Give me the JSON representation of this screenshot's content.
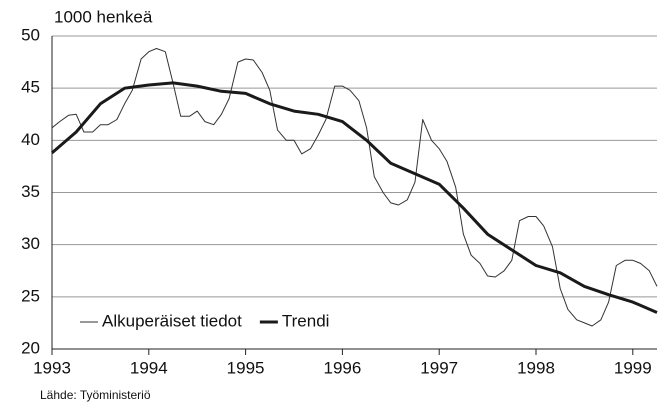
{
  "chart_data": {
    "type": "line",
    "ylabel": "1000 henkeä",
    "source": "Lähde: Työministeriö",
    "xlim": [
      1993,
      1999.25
    ],
    "xticks": [
      1993,
      1994,
      1995,
      1996,
      1997,
      1998,
      1999
    ],
    "ylim": [
      20,
      50
    ],
    "yticks": [
      20,
      25,
      30,
      35,
      40,
      45,
      50
    ],
    "grid": true,
    "legend": "lower left",
    "series": [
      {
        "name": "Alkuperäiset tiedot",
        "color": "#333333",
        "width": 1,
        "x": [
          1993,
          1993.08,
          1993.17,
          1993.25,
          1993.33,
          1993.42,
          1993.5,
          1993.58,
          1993.67,
          1993.75,
          1993.83,
          1993.92,
          1994,
          1994.08,
          1994.17,
          1994.25,
          1994.33,
          1994.42,
          1994.5,
          1994.58,
          1994.67,
          1994.75,
          1994.83,
          1994.92,
          1995,
          1995.08,
          1995.17,
          1995.25,
          1995.33,
          1995.42,
          1995.5,
          1995.58,
          1995.67,
          1995.75,
          1995.83,
          1995.92,
          1996,
          1996.08,
          1996.17,
          1996.25,
          1996.33,
          1996.42,
          1996.5,
          1996.58,
          1996.67,
          1996.75,
          1996.83,
          1996.92,
          1997,
          1997.08,
          1997.17,
          1997.25,
          1997.33,
          1997.42,
          1997.5,
          1997.58,
          1997.67,
          1997.75,
          1997.83,
          1997.92,
          1998,
          1998.08,
          1998.17,
          1998.25,
          1998.33,
          1998.42,
          1998.5,
          1998.58,
          1998.67,
          1998.75,
          1998.83,
          1998.92,
          1999,
          1999.08,
          1999.17,
          1999.25
        ],
        "values": [
          41.2,
          41.8,
          42.4,
          42.5,
          40.8,
          40.8,
          41.5,
          41.5,
          42.0,
          43.5,
          44.8,
          47.8,
          48.5,
          48.8,
          48.5,
          45.5,
          42.3,
          42.3,
          42.8,
          41.8,
          41.5,
          42.5,
          44.0,
          47.5,
          47.8,
          47.7,
          46.5,
          44.8,
          41.0,
          40.0,
          40.0,
          38.7,
          39.2,
          40.5,
          42.0,
          45.2,
          45.2,
          44.8,
          43.8,
          41.2,
          36.5,
          35.0,
          34.0,
          33.8,
          34.3,
          36.0,
          42.0,
          40.0,
          39.2,
          38.0,
          35.5,
          31.0,
          29.0,
          28.2,
          27.0,
          26.9,
          27.5,
          28.5,
          32.3,
          32.7,
          32.7,
          31.8,
          29.8,
          25.8,
          23.8,
          22.8,
          22.5,
          22.2,
          22.8,
          24.5,
          28.0,
          28.5,
          28.5,
          28.2,
          27.5,
          26.0
        ]
      },
      {
        "name": "Trendi",
        "color": "#1a1a1a",
        "width": 3,
        "x": [
          1993,
          1993.25,
          1993.5,
          1993.75,
          1994,
          1994.25,
          1994.5,
          1994.75,
          1995,
          1995.25,
          1995.5,
          1995.75,
          1996,
          1996.25,
          1996.5,
          1996.75,
          1997,
          1997.25,
          1997.5,
          1997.75,
          1998,
          1998.25,
          1998.5,
          1998.75,
          1999,
          1999.25
        ],
        "values": [
          38.8,
          40.8,
          43.5,
          45.0,
          45.3,
          45.5,
          45.2,
          44.7,
          44.5,
          43.5,
          42.8,
          42.5,
          41.8,
          40.0,
          37.8,
          36.8,
          35.8,
          33.5,
          31.0,
          29.5,
          28.0,
          27.3,
          26.0,
          25.2,
          24.5,
          23.5
        ]
      }
    ]
  }
}
